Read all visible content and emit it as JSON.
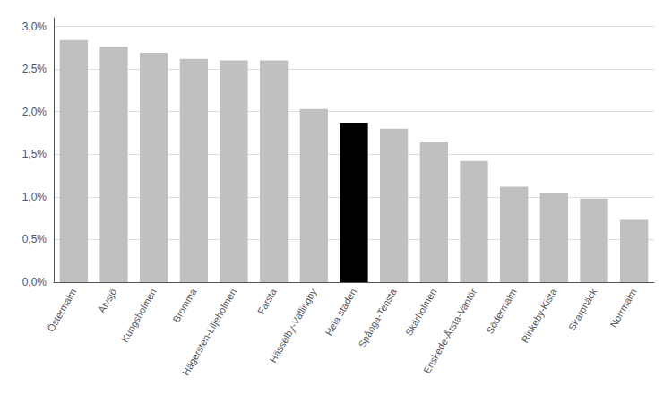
{
  "chart_data": {
    "type": "bar",
    "categories": [
      "Östermalm",
      "Älvsjö",
      "Kungsholmen",
      "Bromma",
      "Hägersten-Liljeholmen",
      "Farsta",
      "Hässelby-Vällingby",
      "Hela staden",
      "Spånga-Tensta",
      "Skärholmen",
      "Enskede-Årsta-Vantör",
      "Södermalm",
      "Rinkeby-Kista",
      "Skarpnäck",
      "Norrmalm"
    ],
    "values": [
      0.0284,
      0.0276,
      0.0269,
      0.0262,
      0.026,
      0.026,
      0.0203,
      0.0187,
      0.018,
      0.0164,
      0.0142,
      0.0112,
      0.0104,
      0.0098,
      0.0073
    ],
    "colors": [
      "#c0c0c0",
      "#c0c0c0",
      "#c0c0c0",
      "#c0c0c0",
      "#c0c0c0",
      "#c0c0c0",
      "#c0c0c0",
      "#000000",
      "#c0c0c0",
      "#c0c0c0",
      "#c0c0c0",
      "#c0c0c0",
      "#c0c0c0",
      "#c0c0c0",
      "#c0c0c0"
    ],
    "ylim": [
      0,
      0.031
    ],
    "yticks": [
      {
        "value": 0.0,
        "label": "0,0%"
      },
      {
        "value": 0.005,
        "label": "0,5%"
      },
      {
        "value": 0.01,
        "label": "1,0%"
      },
      {
        "value": 0.015,
        "label": "1,5%"
      },
      {
        "value": 0.02,
        "label": "2,0%"
      },
      {
        "value": 0.025,
        "label": "2,5%"
      },
      {
        "value": 0.03,
        "label": "3,0%"
      }
    ],
    "grid": true
  }
}
